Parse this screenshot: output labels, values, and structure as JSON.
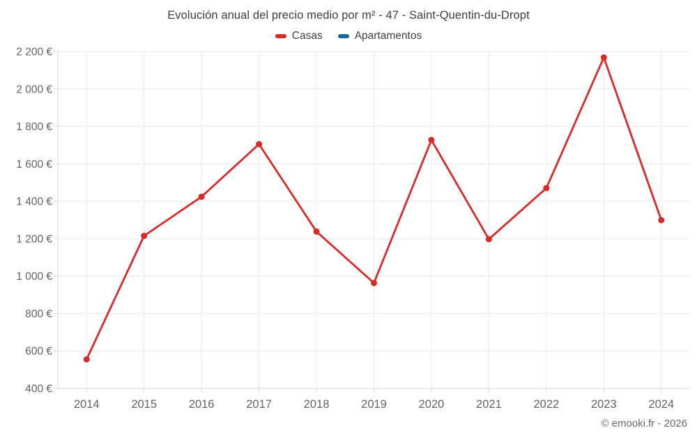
{
  "header": {
    "title": "Evolución anual del precio medio por m² - 47 - Saint-Quentin-du-Dropt"
  },
  "legend": {
    "items": [
      {
        "label": "Casas",
        "color": "#d62b28"
      },
      {
        "label": "Apartamentos",
        "color": "#17699c"
      }
    ]
  },
  "footer": {
    "credit": "© emooki.fr - 2026"
  },
  "colors": {
    "casas_line": "#d62b28",
    "apartamentos_line": "#17699c",
    "grid_line": "#e9e9e9",
    "axis_line": "#d6d6d6",
    "axis_text": "#5f6368",
    "title_text": "#3d3d3d"
  },
  "chart_data": {
    "type": "line",
    "title": "Evolución anual del precio medio por m² - 47 - Saint-Quentin-du-Dropt",
    "categories": [
      "2014",
      "2015",
      "2016",
      "2017",
      "2018",
      "2019",
      "2020",
      "2021",
      "2022",
      "2023",
      "2024"
    ],
    "series": [
      {
        "name": "Casas",
        "color": "#d62b28",
        "values": [
          555,
          1215,
          1424,
          1705,
          1238,
          963,
          1727,
          1197,
          1470,
          2168,
          1299
        ]
      },
      {
        "name": "Apartamentos",
        "color": "#17699c",
        "values": []
      }
    ],
    "xlabel": "",
    "ylabel": "",
    "ylim": [
      400,
      2200
    ],
    "ytick_step": 200,
    "ytick_suffix": " €",
    "grid": true,
    "legend_position": "top",
    "marker": "circle"
  }
}
